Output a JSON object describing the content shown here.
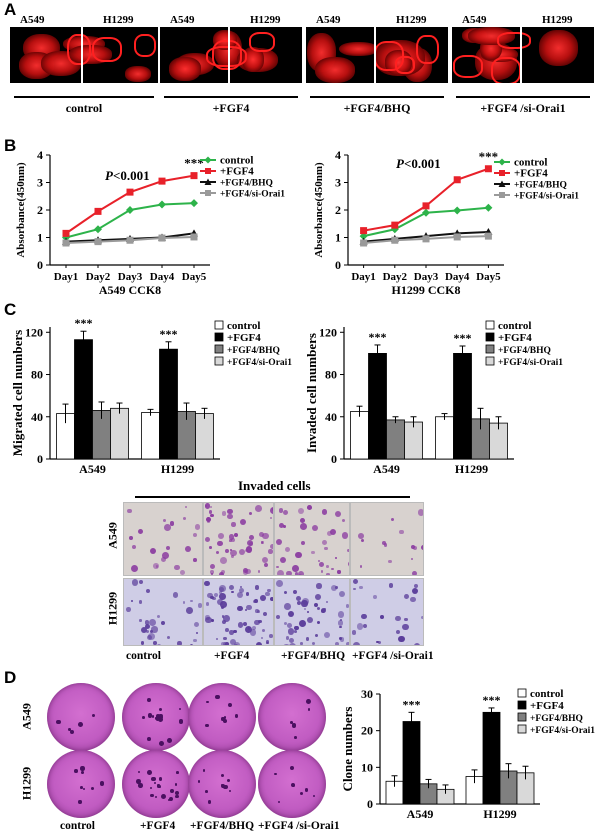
{
  "panels": {
    "A": "A",
    "B": "B",
    "C": "C",
    "D": "D"
  },
  "panel_a": {
    "cell_lines": [
      "A549",
      "H1299"
    ],
    "groups": [
      "control",
      "+FGF4",
      "+FGF4/BHQ",
      "+FGF4 /si-Orai1"
    ]
  },
  "chart_data": [
    {
      "type": "line",
      "name": "cck8-a549",
      "title": "",
      "xlabel": "A549 CCK8",
      "ylabel": "Absorbance(450nm)",
      "x": [
        "Day1",
        "Day2",
        "Day3",
        "Day4",
        "Day5"
      ],
      "ylim": [
        0,
        4
      ],
      "yticks": [
        0,
        1,
        2,
        3,
        4
      ],
      "annotation": "P<0.001",
      "annotation_parts": {
        "italic": "P",
        "rest": "<0.001"
      },
      "significance": "***",
      "series": [
        {
          "name": "control",
          "color": "#2db34a",
          "marker": "diamond",
          "values": [
            1.0,
            1.3,
            2.0,
            2.2,
            2.25
          ]
        },
        {
          "name": "+FGF4",
          "color": "#e8212a",
          "marker": "square",
          "values": [
            1.15,
            1.95,
            2.65,
            3.05,
            3.25
          ]
        },
        {
          "name": "+FGF4/BHQ",
          "color": "#111111",
          "marker": "triangle",
          "values": [
            0.85,
            0.9,
            0.95,
            1.0,
            1.15
          ]
        },
        {
          "name": "+FGF4/si-Orai1",
          "color": "#9a9a9a",
          "marker": "square",
          "values": [
            0.8,
            0.85,
            0.9,
            0.98,
            1.02
          ]
        }
      ]
    },
    {
      "type": "line",
      "name": "cck8-h1299",
      "title": "",
      "xlabel": "H1299 CCK8",
      "ylabel": "Absorbance(450nm)",
      "x": [
        "Day1",
        "Day2",
        "Day3",
        "Day4",
        "Day5"
      ],
      "ylim": [
        0,
        4
      ],
      "yticks": [
        0,
        1,
        2,
        3,
        4
      ],
      "annotation": "P<0.001",
      "annotation_parts": {
        "italic": "P",
        "rest": "<0.001"
      },
      "significance": "***",
      "series": [
        {
          "name": "control",
          "color": "#2db34a",
          "marker": "diamond",
          "values": [
            1.05,
            1.3,
            1.9,
            1.98,
            2.08
          ]
        },
        {
          "name": "+FGF4",
          "color": "#e8212a",
          "marker": "square",
          "values": [
            1.25,
            1.45,
            2.15,
            3.1,
            3.5
          ]
        },
        {
          "name": "+FGF4/BHQ",
          "color": "#111111",
          "marker": "triangle",
          "values": [
            0.85,
            0.95,
            1.05,
            1.15,
            1.2
          ]
        },
        {
          "name": "+FGF4/si-Orai1",
          "color": "#9a9a9a",
          "marker": "square",
          "values": [
            0.8,
            0.9,
            0.95,
            1.02,
            1.05
          ]
        }
      ]
    },
    {
      "type": "bar",
      "name": "migrated",
      "title": "",
      "xlabel": "",
      "ylabel": "Migrated cell numbers",
      "categories": [
        "A549",
        "H1299"
      ],
      "ylim": [
        0,
        125
      ],
      "yticks": [
        0,
        40,
        80,
        120
      ],
      "significance": [
        "***",
        "***"
      ],
      "series": [
        {
          "name": "control",
          "fill": "#ffffff",
          "values": [
            43,
            44
          ],
          "errors": [
            9,
            3
          ]
        },
        {
          "name": "+FGF4",
          "fill": "#000000",
          "values": [
            113,
            104
          ],
          "errors": [
            8,
            7
          ]
        },
        {
          "name": "+FGF4/BHQ",
          "fill": "#808080",
          "values": [
            46,
            45
          ],
          "errors": [
            8,
            8
          ]
        },
        {
          "name": "+FGF4/si-Orai1",
          "fill": "#d9d9d9",
          "values": [
            48,
            43
          ],
          "errors": [
            5,
            5
          ]
        }
      ]
    },
    {
      "type": "bar",
      "name": "invaded",
      "title": "",
      "xlabel": "",
      "ylabel": "Invaded cell numbers",
      "categories": [
        "A549",
        "H1299"
      ],
      "ylim": [
        0,
        125
      ],
      "yticks": [
        0,
        40,
        80,
        120
      ],
      "significance": [
        "***",
        "***"
      ],
      "series": [
        {
          "name": "control",
          "fill": "#ffffff",
          "values": [
            45,
            40
          ],
          "errors": [
            5,
            3
          ]
        },
        {
          "name": "+FGF4",
          "fill": "#000000",
          "values": [
            100,
            100
          ],
          "errors": [
            8,
            7
          ]
        },
        {
          "name": "+FGF4/BHQ",
          "fill": "#808080",
          "values": [
            37,
            38
          ],
          "errors": [
            3,
            10
          ]
        },
        {
          "name": "+FGF4/si-Orai1",
          "fill": "#d9d9d9",
          "values": [
            35,
            34
          ],
          "errors": [
            5,
            6
          ]
        }
      ]
    },
    {
      "type": "bar",
      "name": "clone",
      "title": "",
      "xlabel": "",
      "ylabel": "Clone numbers",
      "categories": [
        "A549",
        "H1299"
      ],
      "ylim": [
        0,
        30
      ],
      "yticks": [
        0,
        10,
        20,
        30
      ],
      "significance": [
        "***",
        "***"
      ],
      "series": [
        {
          "name": "control",
          "fill": "#ffffff",
          "values": [
            6.2,
            7.5
          ],
          "errors": [
            1.5,
            1.8
          ]
        },
        {
          "name": "+FGF4",
          "fill": "#000000",
          "values": [
            22.5,
            25
          ],
          "errors": [
            2.5,
            1.2
          ]
        },
        {
          "name": "+FGF4/BHQ",
          "fill": "#808080",
          "values": [
            5.5,
            9
          ],
          "errors": [
            1.2,
            2
          ]
        },
        {
          "name": "+FGF4/si-Orai1",
          "fill": "#d9d9d9",
          "values": [
            4,
            8.5
          ],
          "errors": [
            1.2,
            1.8
          ]
        }
      ]
    }
  ],
  "panel_c_images": {
    "title": "Invaded cells",
    "rows": [
      "A549",
      "H1299"
    ],
    "columns": [
      "control",
      "+FGF4",
      "+FGF4/BHQ",
      "+FGF4 /si-Orai1"
    ]
  },
  "panel_d_images": {
    "rows": [
      "A549",
      "H1299"
    ],
    "columns": [
      "control",
      "+FGF4",
      "+FGF4/BHQ",
      "+FGF4 /si-Orai1"
    ]
  }
}
